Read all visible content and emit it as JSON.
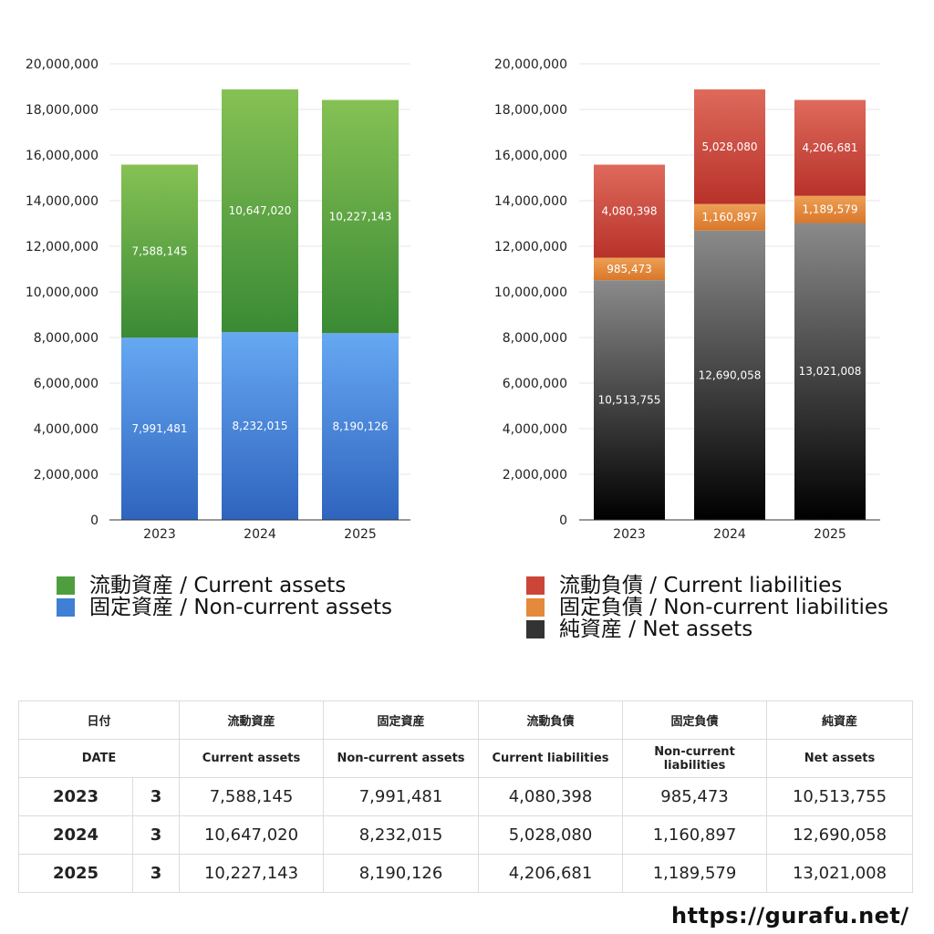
{
  "chart_data": [
    {
      "type": "bar",
      "stacked": true,
      "categories": [
        "2023",
        "2024",
        "2025"
      ],
      "ylim": [
        0,
        20000000
      ],
      "yticks": [
        0,
        2000000,
        4000000,
        6000000,
        8000000,
        10000000,
        12000000,
        14000000,
        16000000,
        18000000,
        20000000
      ],
      "ytick_labels": [
        "0",
        "2,000,000",
        "4,000,000",
        "6,000,000",
        "8,000,000",
        "10,000,000",
        "12,000,000",
        "14,000,000",
        "16,000,000",
        "18,000,000",
        "20,000,000"
      ],
      "grid": true,
      "legend_position": "bottom",
      "series": [
        {
          "name": "固定資産 / Non-current assets",
          "values": [
            7991481,
            8232015,
            8190126
          ],
          "labels": [
            "7,991,481",
            "8,232,015",
            "8,190,126"
          ],
          "color_top": "#66a8f2",
          "color_bottom": "#2f64be"
        },
        {
          "name": "流動資産 / Current assets",
          "values": [
            7588145,
            10647020,
            10227143
          ],
          "labels": [
            "7,588,145",
            "10,647,020",
            "10,227,143"
          ],
          "color_top": "#86c154",
          "color_bottom": "#3a8a35"
        }
      ],
      "legend": [
        {
          "name": "流動資産 / Current assets",
          "color": "#4f9e3e"
        },
        {
          "name": "固定資産 / Non-current assets",
          "color": "#3f7fd6"
        }
      ]
    },
    {
      "type": "bar",
      "stacked": true,
      "categories": [
        "2023",
        "2024",
        "2025"
      ],
      "ylim": [
        0,
        20000000
      ],
      "yticks": [
        0,
        2000000,
        4000000,
        6000000,
        8000000,
        10000000,
        12000000,
        14000000,
        16000000,
        18000000,
        20000000
      ],
      "ytick_labels": [
        "0",
        "2,000,000",
        "4,000,000",
        "6,000,000",
        "8,000,000",
        "10,000,000",
        "12,000,000",
        "14,000,000",
        "16,000,000",
        "18,000,000",
        "20,000,000"
      ],
      "grid": true,
      "legend_position": "bottom",
      "series": [
        {
          "name": "純資産 / Net assets",
          "values": [
            10513755,
            12690058,
            13021008
          ],
          "labels": [
            "10,513,755",
            "12,690,058",
            "13,021,008"
          ],
          "color_top": "#8a8a8a",
          "color_bottom": "#000000"
        },
        {
          "name": "固定負債 / Non-current liabilities",
          "values": [
            985473,
            1160897,
            1189579
          ],
          "labels": [
            "985,473",
            "1,160,897",
            "1,189,579"
          ],
          "color_top": "#eda055",
          "color_bottom": "#d9772a"
        },
        {
          "name": "流動負債 / Current liabilities",
          "values": [
            4080398,
            5028080,
            4206681
          ],
          "labels": [
            "4,080,398",
            "5,028,080",
            "4,206,681"
          ],
          "color_top": "#de6a5c",
          "color_bottom": "#b8322a"
        }
      ],
      "legend": [
        {
          "name": "流動負債 / Current liabilities",
          "color": "#cc4638"
        },
        {
          "name": "固定負債 / Non-current liabilities",
          "color": "#e5893a"
        },
        {
          "name": "純資産 / Net assets",
          "color": "#333333"
        }
      ]
    }
  ],
  "table": {
    "header_jp": [
      "日付",
      "",
      "流動資産",
      "固定資産",
      "流動負債",
      "固定負債",
      "純資産"
    ],
    "header_en": [
      "DATE",
      "",
      "Current assets",
      "Non-current assets",
      "Current liabilities",
      "Non-current liabilities",
      "Net assets"
    ],
    "rows": [
      [
        "2023",
        "3",
        "7,588,145",
        "7,991,481",
        "4,080,398",
        "985,473",
        "10,513,755"
      ],
      [
        "2024",
        "3",
        "10,647,020",
        "8,232,015",
        "5,028,080",
        "1,160,897",
        "12,690,058"
      ],
      [
        "2025",
        "3",
        "10,227,143",
        "8,190,126",
        "4,206,681",
        "1,189,579",
        "13,021,008"
      ]
    ]
  },
  "footer": {
    "url": "https://gurafu.net/"
  }
}
